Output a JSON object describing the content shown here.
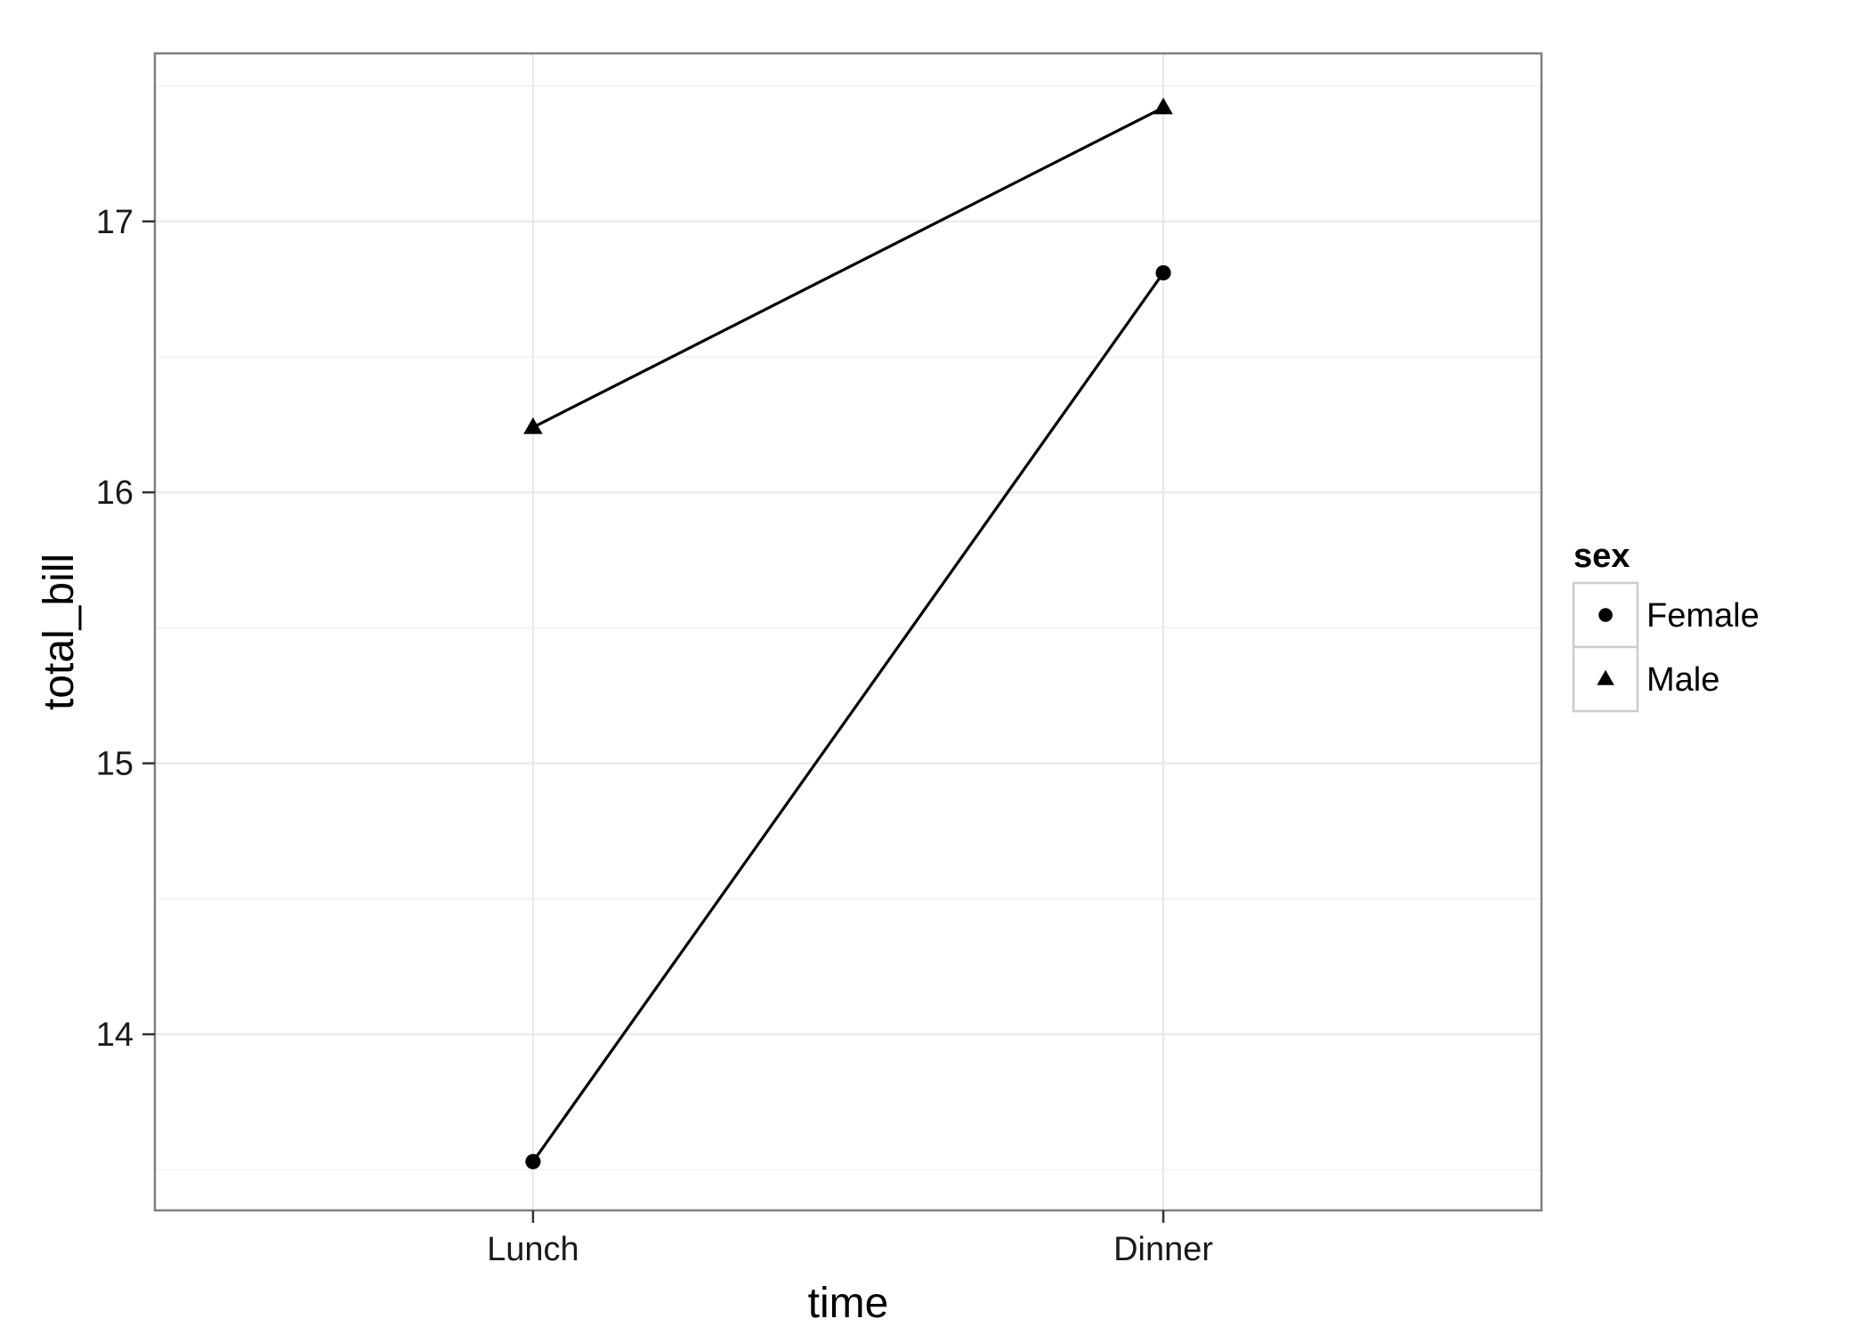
{
  "chart_data": {
    "type": "line",
    "categories": [
      "Lunch",
      "Dinner"
    ],
    "xlabel": "time",
    "ylabel": "total_bill",
    "ylim": [
      13.35,
      17.62
    ],
    "yticks": [
      14,
      15,
      16,
      17
    ],
    "grid": true,
    "legend": {
      "title": "sex",
      "placement": "right"
    },
    "series": [
      {
        "name": "Female",
        "marker": "circle",
        "values": [
          13.53,
          16.81
        ]
      },
      {
        "name": "Male",
        "marker": "triangle",
        "values": [
          16.24,
          17.42
        ]
      }
    ],
    "colors": {
      "line": "#000000",
      "grid": "#e8e8e8",
      "frame": "#7f7f7f",
      "background": "#ffffff"
    }
  }
}
